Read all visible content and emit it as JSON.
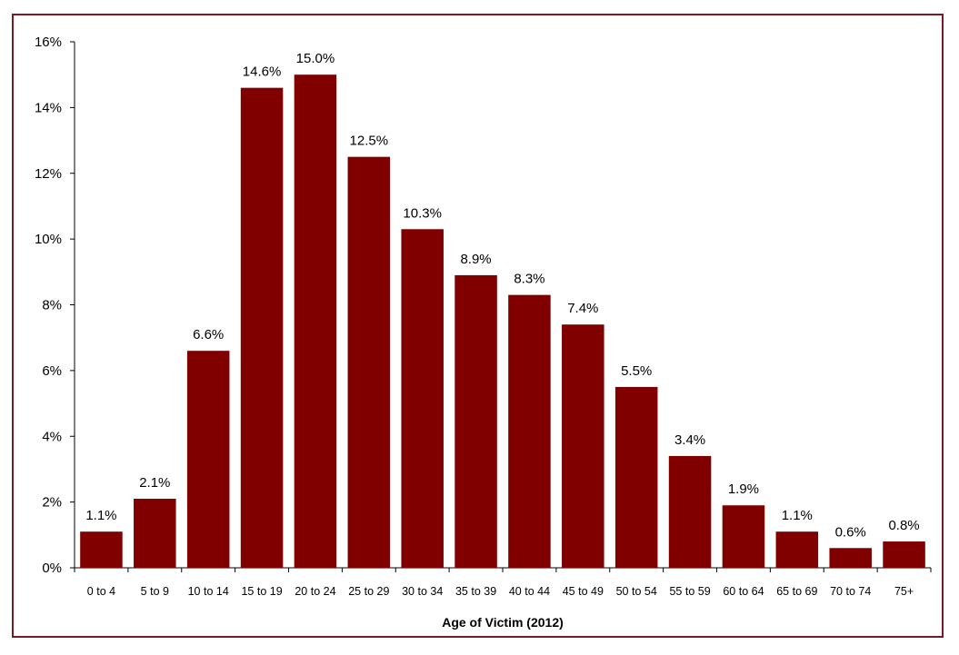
{
  "chart_data": {
    "type": "bar",
    "title": "",
    "xlabel": "Age of Victim (2012)",
    "ylabel": "",
    "ylim": [
      0,
      16
    ],
    "yticks": [
      "0%",
      "2%",
      "4%",
      "6%",
      "8%",
      "10%",
      "12%",
      "14%",
      "16%"
    ],
    "ytick_values": [
      0,
      2,
      4,
      6,
      8,
      10,
      12,
      14,
      16
    ],
    "categories": [
      "0 to 4",
      "5 to 9",
      "10 to 14",
      "15 to 19",
      "20 to 24",
      "25 to 29",
      "30 to 34",
      "35 to 39",
      "40 to 44",
      "45 to 49",
      "50 to 54",
      "55 to 59",
      "60 to 64",
      "65 to 69",
      "70 to 74",
      "75+"
    ],
    "values": [
      1.1,
      2.1,
      6.6,
      14.6,
      15.0,
      12.5,
      10.3,
      8.9,
      8.3,
      7.4,
      5.5,
      3.4,
      1.9,
      1.1,
      0.6,
      0.8
    ],
    "data_labels": [
      "1.1%",
      "2.1%",
      "6.6%",
      "14.6%",
      "15.0%",
      "12.5%",
      "10.3%",
      "8.9%",
      "8.3%",
      "7.4%",
      "5.5%",
      "3.4%",
      "1.9%",
      "1.1%",
      "0.6%",
      "0.8%"
    ],
    "grid": false,
    "legend": "none",
    "colors": {
      "bar": "#800000",
      "frame": "#7b1a22",
      "axis": "#000000"
    }
  }
}
